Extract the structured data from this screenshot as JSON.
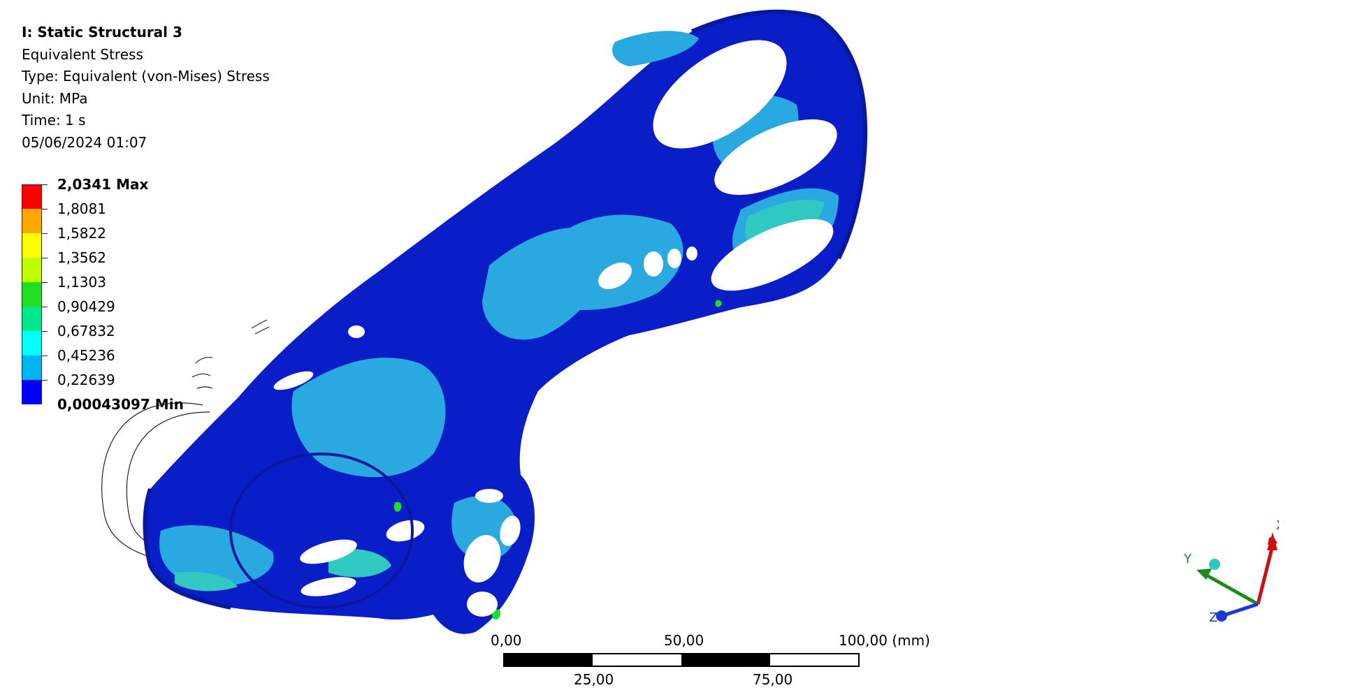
{
  "info": {
    "title": "I: Static Structural 3",
    "result": "Equivalent Stress",
    "type": "Type: Equivalent (von-Mises) Stress",
    "unit": "Unit: MPa",
    "time": "Time: 1 s",
    "date": "05/06/2024 01:07"
  },
  "legend": [
    {
      "label": "2,0341 Max",
      "color": "#ff0000",
      "bold": true
    },
    {
      "label": "1,8081",
      "color": "#ffaa00",
      "bold": false
    },
    {
      "label": "1,5822",
      "color": "#ffff00",
      "bold": false
    },
    {
      "label": "1,3562",
      "color": "#bfff00",
      "bold": false
    },
    {
      "label": "1,1303",
      "color": "#22dd22",
      "bold": false
    },
    {
      "label": "0,90429",
      "color": "#00e88a",
      "bold": false
    },
    {
      "label": "0,67832",
      "color": "#00ffff",
      "bold": false
    },
    {
      "label": "0,45236",
      "color": "#00b4f0",
      "bold": false
    },
    {
      "label": "0,22639",
      "color": "#0000ff",
      "bold": true
    }
  ],
  "legend_min": "0,00043097 Min",
  "scale": {
    "top_labels": [
      "0,00",
      "50,00",
      "100,00 (mm)"
    ],
    "bottom_labels": [
      "25,00",
      "75,00"
    ]
  },
  "axes": {
    "x": "X",
    "y": "Y",
    "z": "Z"
  },
  "colors": {
    "deep_blue": "#0a1ec8",
    "mid_blue": "#1a6ad8",
    "light_blue": "#2aa8e0",
    "cyan": "#30c8c0",
    "x_axis": "#cc1010",
    "y_axis": "#1d8a1d",
    "z_axis": "#1a3ad0"
  }
}
